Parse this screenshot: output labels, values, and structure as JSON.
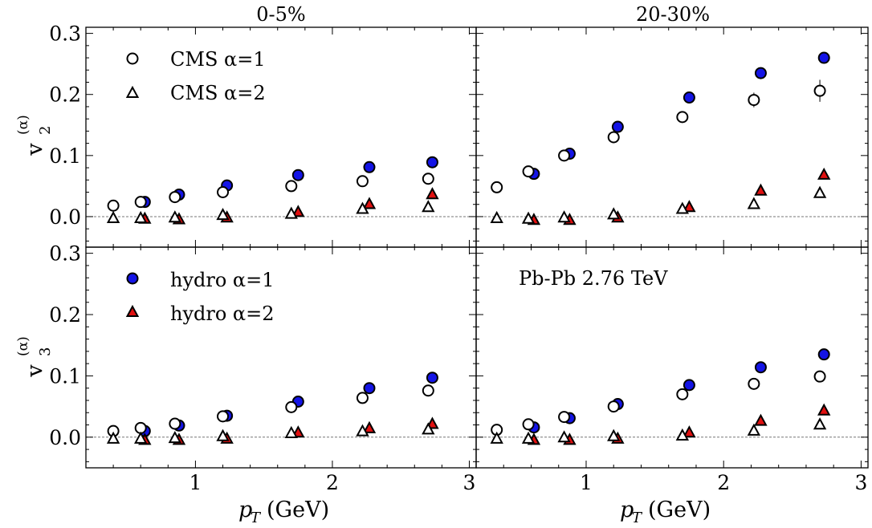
{
  "chart_data": [
    {
      "type": "scatter",
      "panel": "v2 0-5%",
      "title": "0-5%",
      "xlabel": "",
      "ylabel": "v2(α)",
      "xlim": [
        0.2,
        3.05
      ],
      "ylim": [
        -0.05,
        0.31
      ],
      "series": [
        {
          "name": "CMS α=1",
          "marker": "open-circle",
          "x": [
            0.4,
            0.6,
            0.85,
            1.2,
            1.7,
            2.22,
            2.7
          ],
          "y": [
            0.018,
            0.024,
            0.032,
            0.04,
            0.05,
            0.058,
            0.062
          ],
          "err": [
            0,
            0,
            0,
            0,
            0,
            0,
            0
          ]
        },
        {
          "name": "CMS α=2",
          "marker": "open-triangle",
          "x": [
            0.4,
            0.6,
            0.85,
            1.2,
            1.7,
            2.22,
            2.7
          ],
          "y": [
            -0.002,
            -0.002,
            -0.001,
            0.003,
            0.005,
            0.013,
            0.016
          ],
          "err": [
            0,
            0,
            0,
            0,
            0,
            0,
            0
          ]
        },
        {
          "name": "hydro α=1",
          "marker": "blue-circle",
          "x": [
            0.63,
            0.88,
            1.23,
            1.75,
            2.27,
            2.73
          ],
          "y": [
            0.024,
            0.036,
            0.051,
            0.068,
            0.081,
            0.089
          ]
        },
        {
          "name": "hydro α=2",
          "marker": "red-triangle",
          "x": [
            0.63,
            0.88,
            1.23,
            1.75,
            2.27,
            2.73
          ],
          "y": [
            -0.003,
            -0.004,
            -0.001,
            0.008,
            0.021,
            0.037
          ]
        }
      ]
    },
    {
      "type": "scatter",
      "panel": "v2 20-30%",
      "title": "20-30%",
      "xlabel": "",
      "ylabel": "",
      "xlim": [
        0.2,
        3.05
      ],
      "ylim": [
        -0.05,
        0.31
      ],
      "series": [
        {
          "name": "CMS α=1",
          "marker": "open-circle",
          "x": [
            0.35,
            0.58,
            0.84,
            1.2,
            1.7,
            2.22,
            2.7
          ],
          "y": [
            0.048,
            0.074,
            0.1,
            0.13,
            0.163,
            0.191,
            0.206
          ],
          "err": [
            0,
            0,
            0,
            0,
            0.006,
            0.012,
            0.018
          ]
        },
        {
          "name": "CMS α=2",
          "marker": "open-triangle",
          "x": [
            0.35,
            0.58,
            0.84,
            1.2,
            1.7,
            2.22,
            2.7
          ],
          "y": [
            -0.002,
            -0.003,
            -0.001,
            0.004,
            0.013,
            0.021,
            0.039
          ],
          "err": [
            0,
            0,
            0,
            0,
            0,
            0,
            0
          ]
        },
        {
          "name": "hydro α=1",
          "marker": "blue-circle",
          "x": [
            0.62,
            0.88,
            1.23,
            1.75,
            2.27,
            2.73
          ],
          "y": [
            0.07,
            0.103,
            0.147,
            0.195,
            0.235,
            0.26
          ]
        },
        {
          "name": "hydro α=2",
          "marker": "red-triangle",
          "x": [
            0.62,
            0.88,
            1.23,
            1.75,
            2.27,
            2.73
          ],
          "y": [
            -0.005,
            -0.005,
            -0.001,
            0.016,
            0.043,
            0.069
          ]
        }
      ]
    },
    {
      "type": "scatter",
      "panel": "v3 0-5%",
      "title": "",
      "xlabel": "pT (GeV)",
      "ylabel": "v3(α)",
      "xlim": [
        0.2,
        3.05
      ],
      "ylim": [
        -0.05,
        0.31
      ],
      "series": [
        {
          "name": "CMS α=1",
          "marker": "open-circle",
          "x": [
            0.4,
            0.6,
            0.85,
            1.2,
            1.7,
            2.22,
            2.7
          ],
          "y": [
            0.01,
            0.015,
            0.022,
            0.034,
            0.049,
            0.064,
            0.076
          ],
          "err": [
            0,
            0,
            0,
            0,
            0,
            0,
            0
          ]
        },
        {
          "name": "CMS α=2",
          "marker": "open-triangle",
          "x": [
            0.4,
            0.6,
            0.85,
            1.2,
            1.7,
            2.22,
            2.7
          ],
          "y": [
            -0.002,
            -0.002,
            -0.001,
            0.002,
            0.007,
            0.01,
            0.013
          ],
          "err": [
            0,
            0,
            0,
            0,
            0,
            0,
            0
          ]
        },
        {
          "name": "hydro α=1",
          "marker": "blue-circle",
          "x": [
            0.63,
            0.88,
            1.23,
            1.75,
            2.27,
            2.73
          ],
          "y": [
            0.01,
            0.019,
            0.035,
            0.058,
            0.08,
            0.097
          ]
        },
        {
          "name": "hydro α=2",
          "marker": "red-triangle",
          "x": [
            0.63,
            0.88,
            1.23,
            1.75,
            2.27,
            2.73
          ],
          "y": [
            -0.004,
            -0.004,
            -0.002,
            0.008,
            0.015,
            0.022
          ]
        }
      ]
    },
    {
      "type": "scatter",
      "panel": "v3 20-30%",
      "title": "",
      "xlabel": "pT (GeV)",
      "ylabel": "",
      "xlim": [
        0.2,
        3.05
      ],
      "ylim": [
        -0.05,
        0.31
      ],
      "series": [
        {
          "name": "CMS α=1",
          "marker": "open-circle",
          "x": [
            0.35,
            0.58,
            0.84,
            1.2,
            1.7,
            2.22,
            2.7
          ],
          "y": [
            0.012,
            0.021,
            0.033,
            0.05,
            0.07,
            0.087,
            0.099
          ],
          "err": [
            0,
            0,
            0,
            0,
            0,
            0,
            0
          ]
        },
        {
          "name": "CMS α=2",
          "marker": "open-triangle",
          "x": [
            0.35,
            0.58,
            0.84,
            1.2,
            1.7,
            2.22,
            2.7
          ],
          "y": [
            -0.002,
            -0.002,
            0.0,
            0.002,
            0.003,
            0.011,
            0.021
          ],
          "err": [
            0,
            0,
            0,
            0,
            0,
            0,
            0
          ]
        },
        {
          "name": "hydro α=1",
          "marker": "blue-circle",
          "x": [
            0.62,
            0.88,
            1.23,
            1.75,
            2.27,
            2.73
          ],
          "y": [
            0.016,
            0.031,
            0.054,
            0.085,
            0.114,
            0.135
          ]
        },
        {
          "name": "hydro α=2",
          "marker": "red-triangle",
          "x": [
            0.62,
            0.88,
            1.23,
            1.75,
            2.27,
            2.73
          ],
          "y": [
            -0.004,
            -0.004,
            -0.002,
            0.008,
            0.027,
            0.044
          ]
        }
      ]
    }
  ],
  "y_ticks": [
    0.0,
    0.1,
    0.2,
    0.3
  ],
  "y_tick_labels": [
    "0.0",
    "0.1",
    "0.2",
    "0.3"
  ],
  "x_ticks": [
    1,
    2,
    3
  ],
  "x_tick_labels": [
    "1",
    "2",
    "3"
  ],
  "axes": {
    "x_title_main": "p",
    "x_title_sub": "T",
    "x_title_unit": "(GeV)",
    "y_title_v": "v",
    "y_title_alpha": "(α)",
    "v2_sub": "2",
    "v3_sub": "3"
  },
  "legend_top": {
    "cms1": "CMS α=1",
    "cms2": "CMS α=2"
  },
  "legend_bottom": {
    "hydro1": "hydro α=1",
    "hydro2": "hydro α=2"
  },
  "annotation": "Pb-Pb 2.76 TeV",
  "colors": {
    "hydro_circle": "#1414e6",
    "hydro_triangle": "#e01010",
    "zero_line": "#777777"
  }
}
